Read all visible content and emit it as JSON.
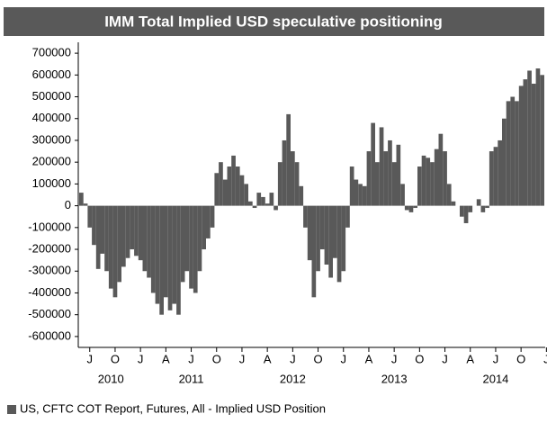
{
  "chart_data": {
    "type": "bar",
    "title": "IMM Total Implied USD speculative positioning",
    "categories": [
      null,
      null,
      "J",
      null,
      null,
      null,
      null,
      null,
      "O",
      null,
      null,
      null,
      null,
      null,
      "J",
      null,
      null,
      null,
      null,
      null,
      "A",
      null,
      null,
      null,
      null,
      null,
      "J",
      null,
      null,
      null,
      null,
      null,
      "O",
      null,
      null,
      null,
      null,
      null,
      "J",
      null,
      null,
      null,
      null,
      null,
      "A",
      null,
      null,
      null,
      null,
      null,
      "J",
      null,
      null,
      null,
      null,
      null,
      "O",
      null,
      null,
      null,
      null,
      null,
      "J",
      null,
      null,
      null,
      null,
      null,
      "A",
      null,
      null,
      null,
      null,
      null,
      "J",
      null,
      null,
      null,
      null,
      null,
      "O",
      null,
      null,
      null,
      null,
      null,
      "J",
      null,
      null,
      null,
      null,
      null,
      "A",
      null,
      null,
      null,
      null,
      null,
      "J",
      null,
      null,
      null,
      null,
      null,
      "O",
      null,
      null,
      null,
      null,
      null,
      "J"
    ],
    "years": [
      "2010",
      "2011",
      "2012",
      "2013",
      "2014"
    ],
    "series": [
      {
        "name": "US, CFTC COT Report, Futures, All - Implied USD Position",
        "color": "#595959",
        "values": [
          60000,
          10000,
          -100000,
          -180000,
          -290000,
          -220000,
          -300000,
          -380000,
          -420000,
          -350000,
          -280000,
          -240000,
          -200000,
          -230000,
          -250000,
          -300000,
          -330000,
          -400000,
          -450000,
          -500000,
          -420000,
          -480000,
          -450000,
          -500000,
          -350000,
          -300000,
          -380000,
          -400000,
          -300000,
          -200000,
          -150000,
          -100000,
          150000,
          200000,
          120000,
          180000,
          230000,
          180000,
          140000,
          100000,
          20000,
          -10000,
          60000,
          40000,
          10000,
          60000,
          -20000,
          200000,
          300000,
          420000,
          250000,
          200000,
          90000,
          -100000,
          -250000,
          -420000,
          -300000,
          -200000,
          -270000,
          -330000,
          -240000,
          -350000,
          -300000,
          -100000,
          180000,
          120000,
          100000,
          90000,
          250000,
          380000,
          200000,
          360000,
          250000,
          300000,
          200000,
          280000,
          100000,
          -20000,
          -30000,
          -10000,
          180000,
          230000,
          220000,
          200000,
          260000,
          330000,
          250000,
          100000,
          20000,
          0,
          -50000,
          -80000,
          -30000,
          0,
          30000,
          -30000,
          -10000,
          250000,
          270000,
          300000,
          400000,
          480000,
          500000,
          480000,
          550000,
          580000,
          620000,
          560000,
          630000,
          600000,
          null
        ]
      }
    ],
    "ylim": [
      -650000,
      750000
    ],
    "yticks": [
      -600000,
      -500000,
      -400000,
      -300000,
      -200000,
      -100000,
      0,
      100000,
      200000,
      300000,
      400000,
      500000,
      600000,
      700000
    ],
    "legend": "bottom-left",
    "grid": false
  }
}
